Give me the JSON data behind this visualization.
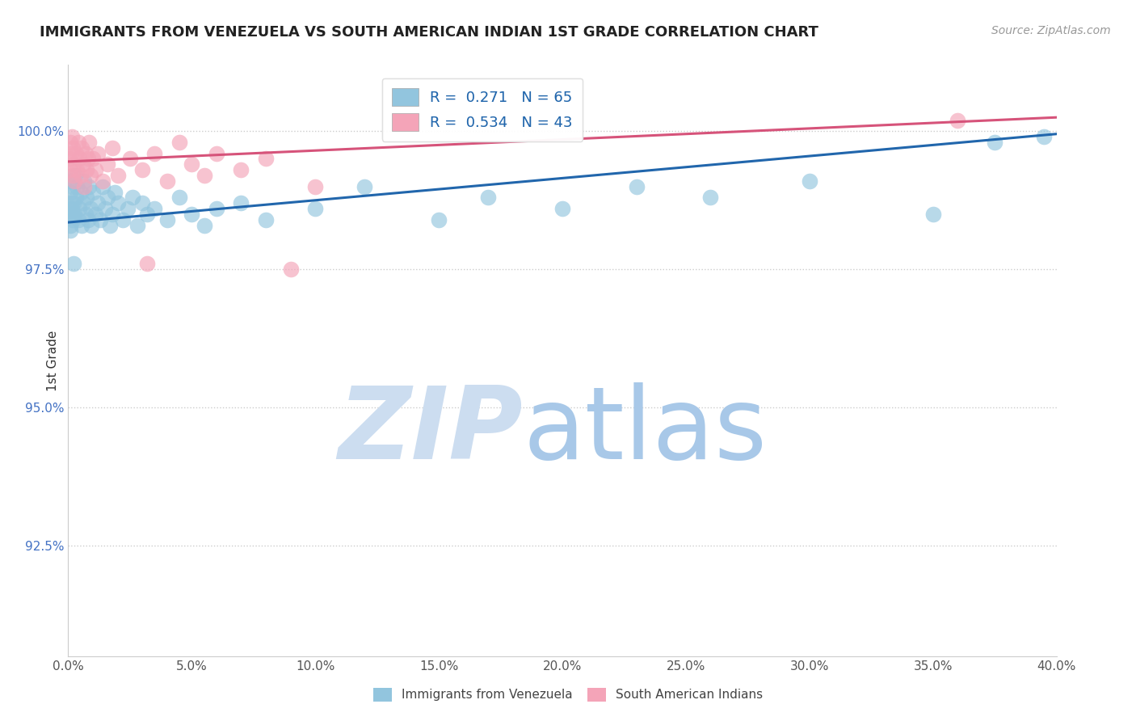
{
  "title": "IMMIGRANTS FROM VENEZUELA VS SOUTH AMERICAN INDIAN 1ST GRADE CORRELATION CHART",
  "source": "Source: ZipAtlas.com",
  "ylabel": "1st Grade",
  "xmin": 0.0,
  "xmax": 40.0,
  "ymin": 90.5,
  "ymax": 101.2,
  "yticks": [
    92.5,
    95.0,
    97.5,
    100.0
  ],
  "xticks": [
    0.0,
    5.0,
    10.0,
    15.0,
    20.0,
    25.0,
    30.0,
    35.0,
    40.0
  ],
  "blue_color": "#92c5de",
  "pink_color": "#f4a4b8",
  "blue_line_color": "#2166ac",
  "pink_line_color": "#d6537a",
  "watermark_zip_color": "#ccddf0",
  "watermark_atlas_color": "#a8c8e8",
  "blue_line_x0": 0.0,
  "blue_line_y0": 98.35,
  "blue_line_x1": 40.0,
  "blue_line_y1": 99.95,
  "pink_line_x0": 0.0,
  "pink_line_y0": 99.45,
  "pink_line_x1": 40.0,
  "pink_line_y1": 100.25,
  "blue_x": [
    0.05,
    0.08,
    0.1,
    0.12,
    0.15,
    0.18,
    0.2,
    0.22,
    0.25,
    0.28,
    0.3,
    0.35,
    0.4,
    0.45,
    0.5,
    0.55,
    0.6,
    0.65,
    0.7,
    0.75,
    0.8,
    0.85,
    0.9,
    0.95,
    1.0,
    1.1,
    1.2,
    1.3,
    1.4,
    1.5,
    1.6,
    1.7,
    1.8,
    1.9,
    2.0,
    2.2,
    2.4,
    2.6,
    2.8,
    3.0,
    3.2,
    3.5,
    4.0,
    4.5,
    5.0,
    5.5,
    6.0,
    7.0,
    8.0,
    10.0,
    12.0,
    15.0,
    17.0,
    20.0,
    23.0,
    26.0,
    30.0,
    35.0,
    37.5,
    39.5,
    0.06,
    0.09,
    0.13,
    0.17,
    0.23
  ],
  "blue_y": [
    98.5,
    98.3,
    98.9,
    99.1,
    98.6,
    98.4,
    99.0,
    98.7,
    98.5,
    99.2,
    98.8,
    99.0,
    98.4,
    98.6,
    98.9,
    98.3,
    98.7,
    99.1,
    98.5,
    98.8,
    98.4,
    99.0,
    98.6,
    98.3,
    98.9,
    98.5,
    98.7,
    98.4,
    99.0,
    98.6,
    98.8,
    98.3,
    98.5,
    98.9,
    98.7,
    98.4,
    98.6,
    98.8,
    98.3,
    98.7,
    98.5,
    98.6,
    98.4,
    98.8,
    98.5,
    98.3,
    98.6,
    98.7,
    98.4,
    98.6,
    99.0,
    98.4,
    98.8,
    98.6,
    99.0,
    98.8,
    99.1,
    98.5,
    99.8,
    99.9,
    98.6,
    98.2,
    98.7,
    98.5,
    97.6
  ],
  "pink_x": [
    0.05,
    0.08,
    0.1,
    0.12,
    0.15,
    0.18,
    0.2,
    0.22,
    0.25,
    0.3,
    0.35,
    0.4,
    0.45,
    0.5,
    0.55,
    0.6,
    0.65,
    0.7,
    0.75,
    0.8,
    0.85,
    0.9,
    1.0,
    1.1,
    1.2,
    1.4,
    1.6,
    1.8,
    2.0,
    2.5,
    3.0,
    3.5,
    4.0,
    4.5,
    5.0,
    5.5,
    6.0,
    7.0,
    8.0,
    9.0,
    10.0,
    36.0,
    3.2
  ],
  "pink_y": [
    99.5,
    99.8,
    99.3,
    99.6,
    99.9,
    99.2,
    99.7,
    99.4,
    99.1,
    99.6,
    99.3,
    99.8,
    99.5,
    99.2,
    99.7,
    99.4,
    99.0,
    99.6,
    99.3,
    99.5,
    99.8,
    99.2,
    99.5,
    99.3,
    99.6,
    99.1,
    99.4,
    99.7,
    99.2,
    99.5,
    99.3,
    99.6,
    99.1,
    99.8,
    99.4,
    99.2,
    99.6,
    99.3,
    99.5,
    97.5,
    99.0,
    100.2,
    97.6
  ]
}
